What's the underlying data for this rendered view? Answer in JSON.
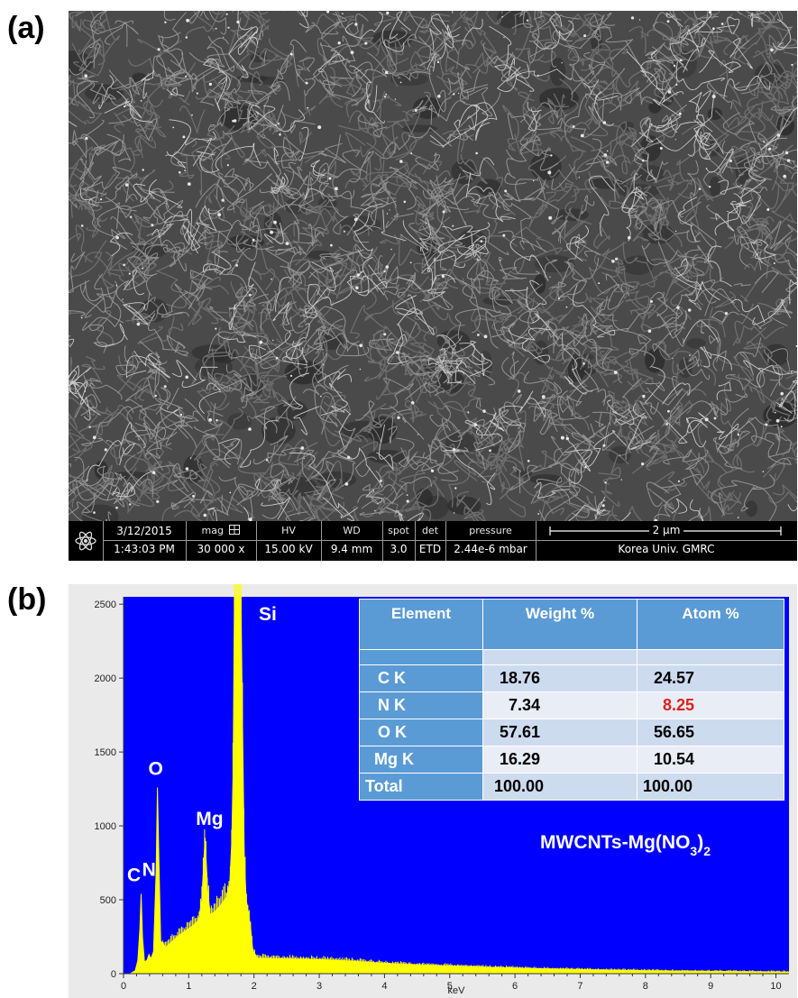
{
  "panel_a_label": "(a)",
  "panel_b_label": "(b)",
  "sem": {
    "date": "3/12/2015",
    "time": "1:43:03 PM",
    "mag_label": "mag",
    "mag_value": "30 000 x",
    "hv_label": "HV",
    "hv_value": "15.00 kV",
    "wd_label": "WD",
    "wd_value": "9.4 mm",
    "spot_label": "spot",
    "spot_value": "3.0",
    "det_label": "det",
    "det_value": "ETD",
    "pressure_label": "pressure",
    "pressure_value": "2.44e-6 mbar",
    "scale_label": "2 µm",
    "lab_label": "Korea Univ. GMRC",
    "icons": [
      "atom-icon",
      "grid-box-icon"
    ]
  },
  "eds": {
    "sample_label_prefix": "MWCNTs-Mg(NO",
    "sample_label_sub": "3",
    "sample_label_suffix": ")",
    "sample_label_sub2": "2",
    "table": {
      "headers": [
        "Element",
        "Weight %",
        "Atom %"
      ],
      "rows": [
        {
          "element": "C K",
          "weight": "18.76",
          "atom": "24.57"
        },
        {
          "element": "N K",
          "weight": "7.34",
          "atom": "8.25"
        },
        {
          "element": "O K",
          "weight": "57.61",
          "atom": "56.65"
        },
        {
          "element": "Mg K",
          "weight": "16.29",
          "atom": "10.54"
        },
        {
          "element": "Total",
          "weight": "100.00",
          "atom": "100.00"
        }
      ],
      "highlight_color": "#e0201b"
    }
  },
  "chart_data": {
    "type": "area",
    "xlabel": "keV",
    "ylabel": "",
    "xlim": [
      0,
      10.2
    ],
    "ylim": [
      0,
      2550
    ],
    "x_ticks": [
      "0",
      "1",
      "2",
      "3",
      "4",
      "5",
      "6",
      "7",
      "8",
      "9",
      "10"
    ],
    "y_ticks": [
      "0",
      "500",
      "1000",
      "1500",
      "2000",
      "2500"
    ],
    "background_color": "#0000ff",
    "series_color": "#ffff00",
    "grid": false,
    "peaks": [
      {
        "label": "C",
        "x": 0.27,
        "y": 540
      },
      {
        "label": "N",
        "x": 0.39,
        "y": 130
      },
      {
        "label": "O",
        "x": 0.52,
        "y": 1260
      },
      {
        "label": "Mg",
        "x": 1.25,
        "y": 920
      },
      {
        "label": "Si",
        "x": 1.74,
        "y": 2550
      }
    ],
    "spectrum": [
      [
        0.1,
        0
      ],
      [
        0.18,
        20
      ],
      [
        0.22,
        90
      ],
      [
        0.25,
        300
      ],
      [
        0.27,
        540
      ],
      [
        0.29,
        250
      ],
      [
        0.32,
        80
      ],
      [
        0.36,
        90
      ],
      [
        0.39,
        130
      ],
      [
        0.42,
        100
      ],
      [
        0.46,
        150
      ],
      [
        0.5,
        700
      ],
      [
        0.52,
        1260
      ],
      [
        0.54,
        800
      ],
      [
        0.57,
        220
      ],
      [
        0.65,
        180
      ],
      [
        0.75,
        220
      ],
      [
        0.85,
        260
      ],
      [
        0.95,
        290
      ],
      [
        1.05,
        320
      ],
      [
        1.15,
        360
      ],
      [
        1.2,
        500
      ],
      [
        1.25,
        920
      ],
      [
        1.29,
        560
      ],
      [
        1.33,
        400
      ],
      [
        1.4,
        420
      ],
      [
        1.5,
        470
      ],
      [
        1.58,
        520
      ],
      [
        1.63,
        620
      ],
      [
        1.66,
        900
      ],
      [
        1.68,
        1400
      ],
      [
        1.7,
        2550
      ],
      [
        1.8,
        2550
      ],
      [
        1.82,
        1800
      ],
      [
        1.85,
        800
      ],
      [
        1.88,
        500
      ],
      [
        1.92,
        400
      ],
      [
        1.95,
        300
      ],
      [
        1.98,
        160
      ],
      [
        2.05,
        105
      ],
      [
        2.5,
        100
      ],
      [
        3.0,
        95
      ],
      [
        3.5,
        85
      ],
      [
        4.0,
        70
      ],
      [
        4.5,
        60
      ],
      [
        5.0,
        52
      ],
      [
        5.5,
        45
      ],
      [
        6.0,
        38
      ],
      [
        6.5,
        32
      ],
      [
        7.0,
        28
      ],
      [
        7.5,
        24
      ],
      [
        8.0,
        20
      ],
      [
        8.5,
        18
      ],
      [
        9.0,
        16
      ],
      [
        9.5,
        14
      ],
      [
        10.0,
        12
      ],
      [
        10.2,
        11
      ]
    ]
  }
}
